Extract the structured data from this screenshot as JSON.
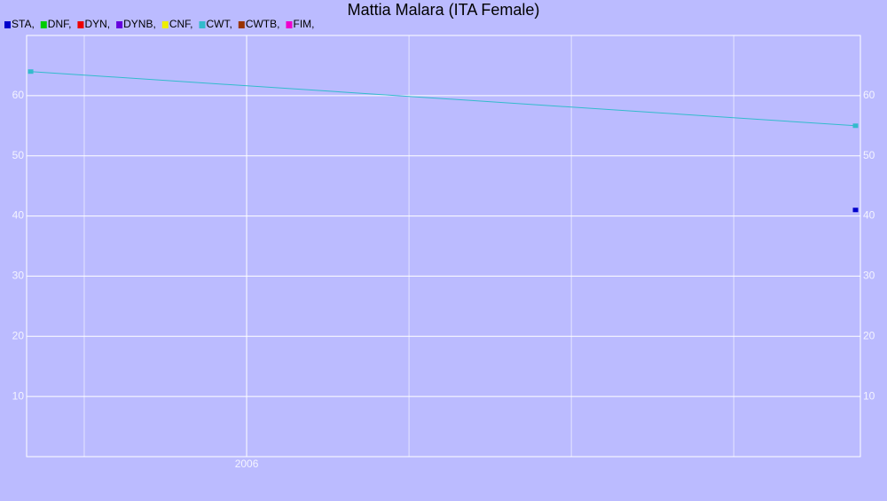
{
  "chart_data": {
    "type": "line",
    "title": "Mattia Malara (ITA Female)",
    "series": [
      {
        "name": "STA,",
        "color": "#0000cc",
        "x": [
          2009.75
        ],
        "values": [
          41
        ]
      },
      {
        "name": "DNF,",
        "color": "#00cc00",
        "x": [],
        "values": []
      },
      {
        "name": "DYN,",
        "color": "#ee0000",
        "x": [],
        "values": []
      },
      {
        "name": "DYNB,",
        "color": "#6600dd",
        "x": [],
        "values": []
      },
      {
        "name": "CNF,",
        "color": "#eeee00",
        "x": [],
        "values": []
      },
      {
        "name": "CWT,",
        "color": "#33bbcc",
        "x": [
          2004.67,
          2009.75
        ],
        "values": [
          64,
          55
        ]
      },
      {
        "name": "CWTB,",
        "color": "#993300",
        "x": [],
        "values": []
      },
      {
        "name": "FIM,",
        "color": "#ee00cc",
        "x": [],
        "values": []
      }
    ],
    "xlim": [
      2004.645,
      2009.78
    ],
    "xticks": [
      {
        "value": 2005,
        "label": null
      },
      2006,
      {
        "value": 2007,
        "label": null
      },
      {
        "value": 2008,
        "label": null
      },
      {
        "value": 2009,
        "label": null
      }
    ],
    "ylim": [
      0,
      70
    ],
    "yticks": [
      10,
      20,
      30,
      40,
      50,
      60
    ],
    "grid": true
  }
}
